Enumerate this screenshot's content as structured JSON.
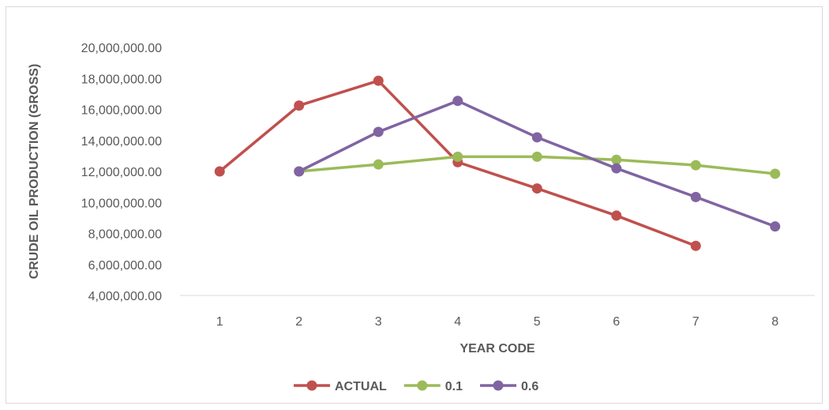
{
  "chart_data": {
    "type": "line",
    "title": "",
    "xlabel": "YEAR CODE",
    "ylabel": "CRUDE OIL PRODUCTION (GROSS)",
    "x": [
      1,
      2,
      3,
      4,
      5,
      6,
      7,
      8
    ],
    "ylim": [
      4000000,
      20000000
    ],
    "yticks": [
      4000000,
      6000000,
      8000000,
      10000000,
      12000000,
      14000000,
      16000000,
      18000000,
      20000000
    ],
    "ytick_labels": [
      "4,000,000.00",
      "6,000,000.00",
      "8,000,000.00",
      "10,000,000.00",
      "12,000,000.00",
      "14,000,000.00",
      "16,000,000.00",
      "18,000,000.00",
      "20,000,000.00"
    ],
    "xtick_labels": [
      "1",
      "2",
      "3",
      "4",
      "5",
      "6",
      "7",
      "8"
    ],
    "grid": false,
    "legend_position": "bottom",
    "series": [
      {
        "name": "ACTUAL",
        "color": "#c0504d",
        "values": [
          12000000,
          16250000,
          17850000,
          12600000,
          10900000,
          9150000,
          7200000,
          null
        ]
      },
      {
        "name": "0.1",
        "color": "#9bbb59",
        "values": [
          null,
          12000000,
          12450000,
          12950000,
          12950000,
          12750000,
          12400000,
          11850000
        ]
      },
      {
        "name": "0.6",
        "color": "#8064a2",
        "values": [
          null,
          12000000,
          14550000,
          16550000,
          14200000,
          12200000,
          10350000,
          8450000
        ]
      }
    ]
  }
}
